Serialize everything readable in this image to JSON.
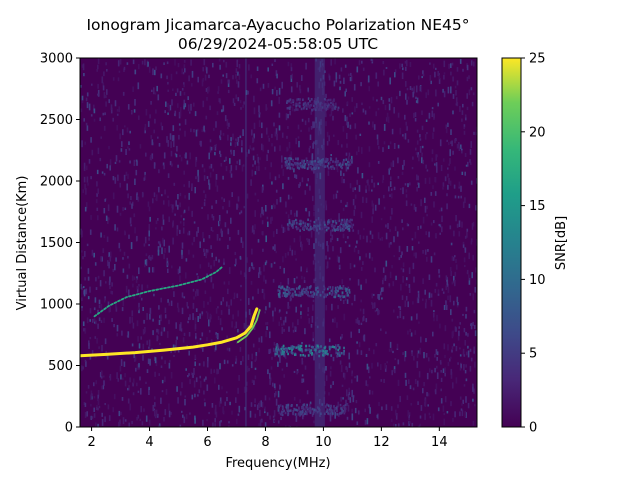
{
  "chart_data": {
    "type": "heatmap",
    "title": [
      "Ionogram Jicamarca-Ayacucho Polarization NE45°",
      "06/29/2024-05:58:05 UTC"
    ],
    "xlabel": "Frequency(MHz)",
    "ylabel": "Virtual Distance(Km)",
    "xlim": [
      1.6,
      15.3
    ],
    "ylim": [
      0,
      3000
    ],
    "xticks": [
      2,
      4,
      6,
      8,
      10,
      12,
      14
    ],
    "yticks": [
      0,
      500,
      1000,
      1500,
      2000,
      2500,
      3000
    ],
    "colorbar": {
      "label": "SNR[dB]",
      "range": [
        0,
        25
      ],
      "ticks": [
        0,
        5,
        10,
        15,
        20,
        25
      ],
      "colormap": "viridis"
    },
    "grid": false,
    "background_color": "#440154",
    "traces": [
      {
        "description": "strong echo trace",
        "snr": 25,
        "points": [
          [
            1.6,
            580
          ],
          [
            2.5,
            590
          ],
          [
            3.5,
            605
          ],
          [
            4.5,
            625
          ],
          [
            5.5,
            650
          ],
          [
            6.0,
            668
          ],
          [
            6.5,
            690
          ],
          [
            7.0,
            725
          ],
          [
            7.3,
            765
          ],
          [
            7.5,
            820
          ],
          [
            7.6,
            900
          ],
          [
            7.7,
            960
          ]
        ]
      },
      {
        "description": "second echo trace",
        "snr": 22,
        "points": [
          [
            7.05,
            690
          ],
          [
            7.35,
            740
          ],
          [
            7.55,
            800
          ],
          [
            7.7,
            870
          ],
          [
            7.8,
            950
          ]
        ]
      },
      {
        "description": "multiple-hop echo trace",
        "snr": 17,
        "points": [
          [
            2.1,
            900
          ],
          [
            2.6,
            985
          ],
          [
            3.2,
            1055
          ],
          [
            4.0,
            1105
          ],
          [
            5.0,
            1150
          ],
          [
            5.8,
            1200
          ],
          [
            6.3,
            1260
          ],
          [
            6.5,
            1300
          ]
        ]
      }
    ],
    "bands": [
      {
        "x": [
          9.7,
          10.05
        ],
        "snr": 5
      },
      {
        "x": [
          7.3,
          7.35
        ],
        "snr": 6
      }
    ],
    "echo_rows": [
      {
        "y": 630,
        "x": [
          8.3,
          10.7
        ],
        "snr": 10
      },
      {
        "y": 1110,
        "x": [
          8.4,
          10.9
        ],
        "snr": 7
      },
      {
        "y": 1650,
        "x": [
          8.7,
          11.0
        ],
        "snr": 6
      },
      {
        "y": 2150,
        "x": [
          8.6,
          11.0
        ],
        "snr": 6
      },
      {
        "y": 2630,
        "x": [
          8.7,
          10.5
        ],
        "snr": 4
      },
      {
        "y": 150,
        "x": [
          8.4,
          10.8
        ],
        "snr": 5
      }
    ]
  }
}
